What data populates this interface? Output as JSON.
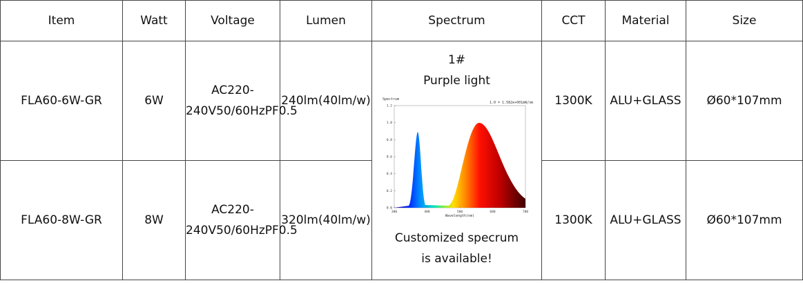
{
  "table": {
    "header": [
      "Item",
      "Watt",
      "Voltage",
      "Lumen",
      "Spectrum",
      "CCT",
      "Material",
      "Size"
    ],
    "rows": [
      {
        "item": "FLA60-6W-GR",
        "watt": "6W",
        "voltage": [
          "AC220-240V",
          "50/60Hz",
          "PF0.5"
        ],
        "lumen": [
          "240lm",
          "(40lm/w)"
        ],
        "cct": "1300K",
        "material": "ALU+GLASS",
        "size": "Ø60*107mm"
      },
      {
        "item": "FLA60-8W-GR",
        "watt": "8W",
        "voltage": [
          "AC220-240V",
          "50/60Hz",
          "PF0.5"
        ],
        "lumen": [
          "320lm",
          "(40lm/w)"
        ],
        "cct": "1300K",
        "material": "ALU+GLASS",
        "size": "Ø60*107mm"
      }
    ]
  },
  "spectrum": {
    "lines": [
      "1#",
      "Purple light"
    ],
    "chart": {
      "title": "Spectrum",
      "scale_note": "1.0 = 1.582e+001mW/nm",
      "x_label": "Wavelength(nm)",
      "xticks": [
        "380",
        "480",
        "580",
        "680",
        "780"
      ],
      "yticks": [
        "0.0",
        "0.2",
        "0.4",
        "0.6",
        "0.8",
        "1.0",
        "1.2"
      ]
    },
    "note": [
      "Customized specrum",
      "is available!"
    ]
  }
}
